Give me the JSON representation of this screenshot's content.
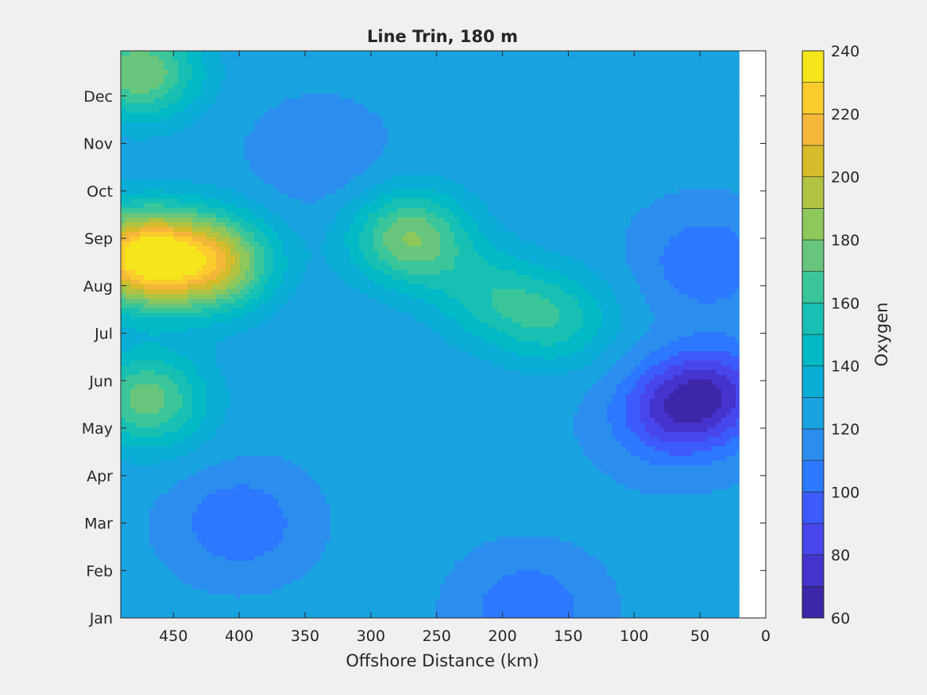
{
  "chart_data": {
    "type": "heatmap",
    "subtype": "filled-contour",
    "title": "Line Trin, 180 m",
    "xlabel": "Offshore Distance (km)",
    "ylabel": "",
    "xlim": [
      490,
      0
    ],
    "x_reversed": true,
    "xticks": [
      450,
      400,
      350,
      300,
      250,
      200,
      150,
      100,
      50,
      0
    ],
    "ylabels": [
      "Jan",
      "Feb",
      "Mar",
      "Apr",
      "May",
      "Jun",
      "Jul",
      "Aug",
      "Sep",
      "Oct",
      "Nov",
      "Dec"
    ],
    "data_x_range": [
      490,
      20
    ],
    "grid": false,
    "colorbar": {
      "label": "Oxygen",
      "range": [
        60,
        240
      ],
      "levels": [
        60,
        70,
        80,
        90,
        100,
        110,
        120,
        130,
        140,
        150,
        160,
        170,
        180,
        190,
        200,
        210,
        220,
        230,
        240
      ],
      "ticks": [
        60,
        80,
        100,
        120,
        140,
        160,
        180,
        200,
        220,
        240
      ],
      "colormap": "parula",
      "colors": [
        "#3e26a8",
        "#4433cc",
        "#4746eb",
        "#3d5bfc",
        "#2c78ff",
        "#2b8eef",
        "#1aa3e1",
        "#0aadd5",
        "#02b9c6",
        "#17c0b2",
        "#3ac69a",
        "#68c67c",
        "#8ec75a",
        "#b2c242",
        "#d6bb2a",
        "#f5b73a",
        "#fccc2e",
        "#f4e61b"
      ],
      "position": "right"
    },
    "features": [
      {
        "x": 475,
        "month": 7.6,
        "value": 230
      },
      {
        "x": 420,
        "month": 7.5,
        "value": 200
      },
      {
        "x": 475,
        "month": 11.5,
        "value": 180
      },
      {
        "x": 270,
        "month": 8.0,
        "value": 180
      },
      {
        "x": 470,
        "month": 4.6,
        "value": 175
      },
      {
        "x": 400,
        "month": 2.0,
        "value": 100
      },
      {
        "x": 340,
        "month": 9.7,
        "value": 110
      },
      {
        "x": 160,
        "month": 6.3,
        "value": 155
      },
      {
        "x": 210,
        "month": 6.8,
        "value": 150
      },
      {
        "x": 70,
        "month": 4.3,
        "value": 85
      },
      {
        "x": 40,
        "month": 4.8,
        "value": 85
      },
      {
        "x": 45,
        "month": 7.5,
        "value": 100
      },
      {
        "x": 180,
        "month": 0.2,
        "value": 100
      },
      {
        "x": 20,
        "month": 11.0,
        "value": 120
      }
    ],
    "background_value": 122
  }
}
